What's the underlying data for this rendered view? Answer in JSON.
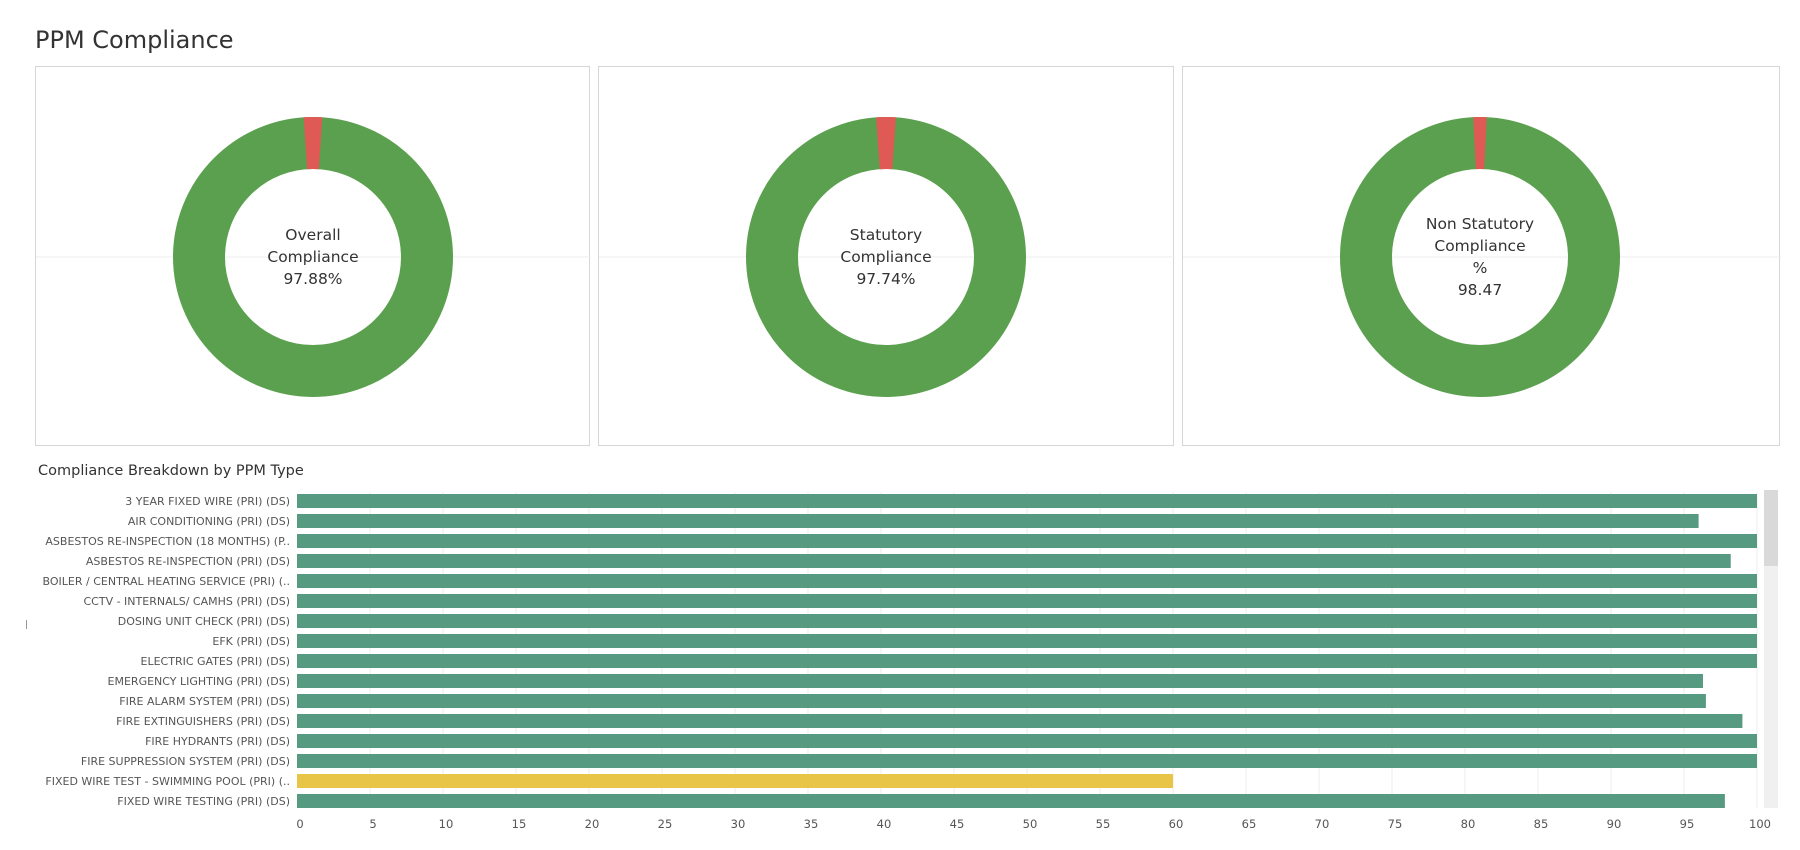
{
  "page": {
    "title": "PPM Compliance"
  },
  "colors": {
    "compliant": "#5aa04e",
    "noncompliant": "#e05a55",
    "bar": "#569a82",
    "bar_low": "#e8c547",
    "grid": "#eeeeee",
    "scroll_track": "#f0f0f0",
    "scroll_thumb": "#d9d9d9"
  },
  "donuts": [
    {
      "label_lines": [
        "Overall",
        "Compliance",
        "97.88%"
      ],
      "value": 97.88
    },
    {
      "label_lines": [
        "Statutory",
        "Compliance",
        "97.74%"
      ],
      "value": 97.74
    },
    {
      "label_lines": [
        "Non Statutory",
        "Compliance",
        "%",
        "98.47"
      ],
      "value": 98.47
    }
  ],
  "breakdown": {
    "title": "Compliance Breakdown by PPM Type"
  },
  "chart_data": {
    "type": "bar",
    "orientation": "horizontal",
    "title": "Compliance Breakdown by PPM Type",
    "categories": [
      "3 YEAR FIXED WIRE (PRI) (DS)",
      "AIR CONDITIONING (PRI) (DS)",
      "ASBESTOS RE-INSPECTION (18 MONTHS) (P..",
      "ASBESTOS RE-INSPECTION (PRI) (DS)",
      "BOILER / CENTRAL HEATING SERVICE (PRI) (..",
      "CCTV - INTERNALS/ CAMHS (PRI) (DS)",
      "DOSING UNIT CHECK (PRI) (DS)",
      "EFK (PRI) (DS)",
      "ELECTRIC GATES (PRI) (DS)",
      "EMERGENCY LIGHTING (PRI) (DS)",
      "FIRE ALARM SYSTEM (PRI) (DS)",
      "FIRE EXTINGUISHERS (PRI) (DS)",
      "FIRE HYDRANTS (PRI) (DS)",
      "FIRE SUPPRESSION SYSTEM (PRI) (DS)",
      "FIXED WIRE TEST - SWIMMING POOL (PRI) (..",
      "FIXED WIRE TESTING (PRI) (DS)"
    ],
    "values": [
      100,
      96,
      100,
      98.2,
      100,
      100,
      100,
      100,
      100,
      96.3,
      96.5,
      99,
      100,
      100,
      60,
      97.8
    ],
    "highlight_below": 90,
    "xlim": [
      0,
      100
    ],
    "xticks": [
      0,
      5,
      10,
      15,
      20,
      25,
      30,
      35,
      40,
      45,
      50,
      55,
      60,
      65,
      70,
      75,
      80,
      85,
      90,
      95,
      100
    ],
    "grid": true
  }
}
